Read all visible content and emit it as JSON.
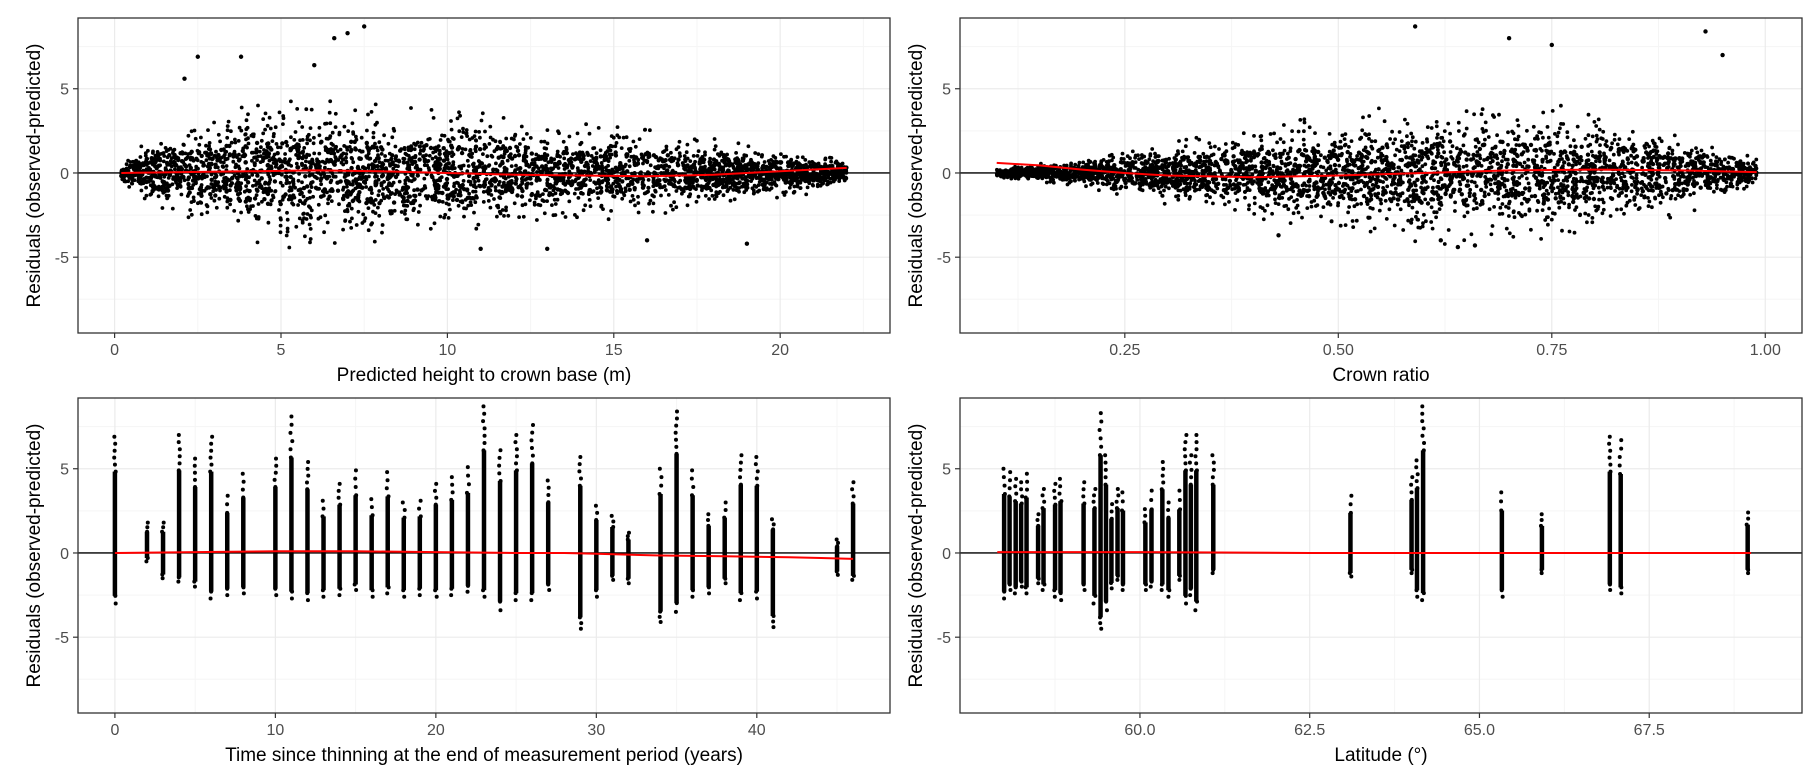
{
  "colors": {
    "points": "#000000",
    "smooth": "#ff0000",
    "zero_line": "#000000",
    "grid_major": "#ebebeb",
    "grid_minor": "#f5f5f5",
    "panel_border": "#333333",
    "tick_text": "#4d4d4d"
  },
  "chart_data": [
    {
      "type": "scatter",
      "xlabel": "Predicted height to crown base (m)",
      "ylabel": "Residuals (observed-predicted)",
      "xlim": [
        -1.1,
        23.3
      ],
      "ylim": [
        -9.5,
        9.2
      ],
      "x_ticks": [
        0,
        5,
        10,
        15,
        20
      ],
      "x_tick_labels": [
        "0",
        "5",
        "10",
        "15",
        "20"
      ],
      "y_ticks": [
        -5,
        0,
        5
      ],
      "y_tick_labels": [
        "-5",
        "0",
        "5"
      ],
      "zero_line": 0,
      "grid": true,
      "point_cloud": {
        "x_range": [
          0.2,
          22.0
        ],
        "envelope": [
          [
            0.2,
            0.3
          ],
          [
            1.0,
            1.5
          ],
          [
            3.0,
            2.6
          ],
          [
            5.0,
            3.3
          ],
          [
            7.0,
            3.1
          ],
          [
            10.0,
            2.8
          ],
          [
            13.0,
            2.3
          ],
          [
            16.0,
            1.9
          ],
          [
            19.0,
            1.3
          ],
          [
            21.0,
            0.9
          ],
          [
            22.0,
            0.6
          ]
        ],
        "notable_points": [
          [
            7.5,
            8.7
          ],
          [
            7.0,
            8.3
          ],
          [
            6.6,
            8.0
          ],
          [
            2.5,
            6.9
          ],
          [
            3.8,
            6.9
          ],
          [
            2.1,
            5.6
          ],
          [
            6.0,
            6.4
          ],
          [
            19.0,
            -4.2
          ],
          [
            11.0,
            -4.5
          ],
          [
            13.0,
            -4.5
          ],
          [
            16.0,
            -4.0
          ]
        ]
      },
      "smooth": {
        "x": [
          0.2,
          2,
          4,
          6,
          8,
          10,
          12,
          14,
          16,
          18,
          20,
          22
        ],
        "y": [
          0.0,
          0.05,
          0.1,
          0.15,
          0.1,
          0.0,
          -0.1,
          -0.15,
          -0.2,
          -0.1,
          0.1,
          0.3
        ]
      }
    },
    {
      "type": "scatter",
      "xlabel": "Crown ratio",
      "ylabel": "Residuals (observed-predicted)",
      "xlim": [
        0.057,
        1.043
      ],
      "ylim": [
        -9.5,
        9.2
      ],
      "x_ticks": [
        0.25,
        0.5,
        0.75,
        1.0
      ],
      "x_tick_labels": [
        "0.25",
        "0.50",
        "0.75",
        "1.00"
      ],
      "y_ticks": [
        -5,
        0,
        5
      ],
      "y_tick_labels": [
        "-5",
        "0",
        "5"
      ],
      "zero_line": 0,
      "grid": true,
      "point_cloud": {
        "x_range": [
          0.1,
          0.99
        ],
        "envelope": [
          [
            0.1,
            0.2
          ],
          [
            0.2,
            0.6
          ],
          [
            0.3,
            1.4
          ],
          [
            0.4,
            2.0
          ],
          [
            0.5,
            2.6
          ],
          [
            0.6,
            3.1
          ],
          [
            0.7,
            3.2
          ],
          [
            0.8,
            2.8
          ],
          [
            0.9,
            2.0
          ],
          [
            0.99,
            0.7
          ]
        ],
        "notable_points": [
          [
            0.59,
            8.7
          ],
          [
            0.93,
            8.4
          ],
          [
            0.7,
            8.0
          ],
          [
            0.95,
            7.0
          ],
          [
            0.75,
            7.6
          ],
          [
            0.43,
            -3.7
          ],
          [
            0.64,
            -4.4
          ],
          [
            0.66,
            -4.3
          ],
          [
            0.62,
            -4.0
          ]
        ]
      },
      "smooth": {
        "x": [
          0.1,
          0.15,
          0.2,
          0.25,
          0.3,
          0.4,
          0.5,
          0.6,
          0.7,
          0.8,
          0.9,
          0.99
        ],
        "y": [
          0.6,
          0.45,
          0.2,
          0.0,
          -0.15,
          -0.25,
          -0.15,
          0.0,
          0.15,
          0.2,
          0.15,
          0.05
        ]
      }
    },
    {
      "type": "scatter",
      "xlabel": "Time since thinning at the end of measurement period (years)",
      "ylabel": "Residuals (observed-predicted)",
      "xlim": [
        -2.3,
        48.3
      ],
      "ylim": [
        -9.5,
        9.2
      ],
      "x_ticks": [
        0,
        10,
        20,
        30,
        40
      ],
      "x_tick_labels": [
        "0",
        "10",
        "20",
        "30",
        "40"
      ],
      "y_ticks": [
        -5,
        0,
        5
      ],
      "y_tick_labels": [
        "-5",
        "0",
        "5"
      ],
      "zero_line": 0,
      "grid": true,
      "columns": [
        {
          "x": 0,
          "min": -3.0,
          "max": 6.9
        },
        {
          "x": 2,
          "min": -0.5,
          "max": 1.8
        },
        {
          "x": 3,
          "min": -1.5,
          "max": 1.8
        },
        {
          "x": 4,
          "min": -1.7,
          "max": 7.0
        },
        {
          "x": 5,
          "min": -2.0,
          "max": 5.6
        },
        {
          "x": 6,
          "min": -2.7,
          "max": 6.9
        },
        {
          "x": 7,
          "min": -2.5,
          "max": 3.4
        },
        {
          "x": 8,
          "min": -2.4,
          "max": 4.7
        },
        {
          "x": 10,
          "min": -2.5,
          "max": 5.6
        },
        {
          "x": 11,
          "min": -2.7,
          "max": 8.1
        },
        {
          "x": 12,
          "min": -2.8,
          "max": 5.4
        },
        {
          "x": 13,
          "min": -2.6,
          "max": 3.1
        },
        {
          "x": 14,
          "min": -2.5,
          "max": 4.1
        },
        {
          "x": 15,
          "min": -2.2,
          "max": 4.9
        },
        {
          "x": 16,
          "min": -2.6,
          "max": 3.2
        },
        {
          "x": 17,
          "min": -2.4,
          "max": 4.8
        },
        {
          "x": 18,
          "min": -2.6,
          "max": 3.0
        },
        {
          "x": 19,
          "min": -2.5,
          "max": 3.1
        },
        {
          "x": 20,
          "min": -2.6,
          "max": 4.1
        },
        {
          "x": 21,
          "min": -2.5,
          "max": 4.5
        },
        {
          "x": 22,
          "min": -2.3,
          "max": 5.1
        },
        {
          "x": 23,
          "min": -2.6,
          "max": 8.7
        },
        {
          "x": 24,
          "min": -3.4,
          "max": 6.1
        },
        {
          "x": 25,
          "min": -2.8,
          "max": 7.0
        },
        {
          "x": 26,
          "min": -2.8,
          "max": 7.6
        },
        {
          "x": 27,
          "min": -2.2,
          "max": 4.3
        },
        {
          "x": 29,
          "min": -4.5,
          "max": 5.7
        },
        {
          "x": 30,
          "min": -2.6,
          "max": 2.8
        },
        {
          "x": 31,
          "min": -1.6,
          "max": 2.2
        },
        {
          "x": 32,
          "min": -1.8,
          "max": 1.2
        },
        {
          "x": 34,
          "min": -4.1,
          "max": 5.0
        },
        {
          "x": 35,
          "min": -3.5,
          "max": 8.4
        },
        {
          "x": 36,
          "min": -2.6,
          "max": 4.9
        },
        {
          "x": 37,
          "min": -2.4,
          "max": 2.3
        },
        {
          "x": 38,
          "min": -1.8,
          "max": 3.0
        },
        {
          "x": 39,
          "min": -2.8,
          "max": 5.8
        },
        {
          "x": 40,
          "min": -2.7,
          "max": 5.7
        },
        {
          "x": 41,
          "min": -4.4,
          "max": 2.0
        },
        {
          "x": 45,
          "min": -1.3,
          "max": 0.8
        },
        {
          "x": 46,
          "min": -1.6,
          "max": 4.2
        }
      ],
      "smooth": {
        "x": [
          0,
          5,
          10,
          15,
          20,
          25,
          28,
          30,
          34,
          38,
          42,
          44,
          46
        ],
        "y": [
          0.0,
          0.05,
          0.1,
          0.1,
          0.05,
          0.0,
          0.0,
          -0.05,
          -0.15,
          -0.2,
          -0.25,
          -0.3,
          -0.35
        ]
      }
    },
    {
      "type": "scatter",
      "xlabel": "Latitude (°)",
      "ylabel": "Residuals (observed-predicted)",
      "xlim": [
        57.35,
        69.75
      ],
      "ylim": [
        -9.5,
        9.2
      ],
      "x_ticks": [
        60.0,
        62.5,
        65.0,
        67.5
      ],
      "x_tick_labels": [
        "60.0",
        "62.5",
        "65.0",
        "67.5"
      ],
      "y_ticks": [
        -5,
        0,
        5
      ],
      "y_tick_labels": [
        "-5",
        "0",
        "5"
      ],
      "zero_line": 0,
      "grid": true,
      "columns": [
        {
          "x": 58.0,
          "min": -2.7,
          "max": 5.0
        },
        {
          "x": 58.08,
          "min": -2.2,
          "max": 4.8
        },
        {
          "x": 58.17,
          "min": -2.4,
          "max": 4.4
        },
        {
          "x": 58.25,
          "min": -2.0,
          "max": 4.2
        },
        {
          "x": 58.33,
          "min": -2.4,
          "max": 4.7
        },
        {
          "x": 58.5,
          "min": -1.8,
          "max": 2.3
        },
        {
          "x": 58.58,
          "min": -2.2,
          "max": 3.8
        },
        {
          "x": 58.75,
          "min": -2.6,
          "max": 4.1
        },
        {
          "x": 58.83,
          "min": -2.8,
          "max": 4.4
        },
        {
          "x": 59.17,
          "min": -2.2,
          "max": 4.2
        },
        {
          "x": 59.33,
          "min": -3.0,
          "max": 3.8
        },
        {
          "x": 59.42,
          "min": -4.5,
          "max": 8.3
        },
        {
          "x": 59.5,
          "min": -3.4,
          "max": 5.8
        },
        {
          "x": 59.58,
          "min": -2.1,
          "max": 2.9
        },
        {
          "x": 59.67,
          "min": -1.6,
          "max": 3.8
        },
        {
          "x": 59.75,
          "min": -2.2,
          "max": 3.6
        },
        {
          "x": 60.08,
          "min": -2.2,
          "max": 2.6
        },
        {
          "x": 60.17,
          "min": -2.0,
          "max": 3.7
        },
        {
          "x": 60.33,
          "min": -2.2,
          "max": 5.4
        },
        {
          "x": 60.42,
          "min": -2.6,
          "max": 3.0
        },
        {
          "x": 60.58,
          "min": -1.6,
          "max": 3.7
        },
        {
          "x": 60.67,
          "min": -3.0,
          "max": 7.0
        },
        {
          "x": 60.75,
          "min": -2.5,
          "max": 5.8
        },
        {
          "x": 60.83,
          "min": -3.4,
          "max": 7.0
        },
        {
          "x": 61.08,
          "min": -1.2,
          "max": 5.8
        },
        {
          "x": 63.1,
          "min": -1.4,
          "max": 3.4
        },
        {
          "x": 64.0,
          "min": -1.2,
          "max": 4.5
        },
        {
          "x": 64.08,
          "min": -2.6,
          "max": 5.5
        },
        {
          "x": 64.17,
          "min": -2.8,
          "max": 8.7
        },
        {
          "x": 65.33,
          "min": -2.6,
          "max": 3.6
        },
        {
          "x": 65.92,
          "min": -1.2,
          "max": 2.3
        },
        {
          "x": 66.92,
          "min": -2.2,
          "max": 6.9
        },
        {
          "x": 67.08,
          "min": -2.4,
          "max": 6.7
        },
        {
          "x": 68.95,
          "min": -1.2,
          "max": 2.4
        }
      ],
      "smooth": {
        "x": [
          57.9,
          60,
          62.5,
          65,
          67.5,
          69.0
        ],
        "y": [
          0.05,
          0.05,
          0.0,
          0.0,
          0.0,
          0.0
        ]
      }
    }
  ]
}
